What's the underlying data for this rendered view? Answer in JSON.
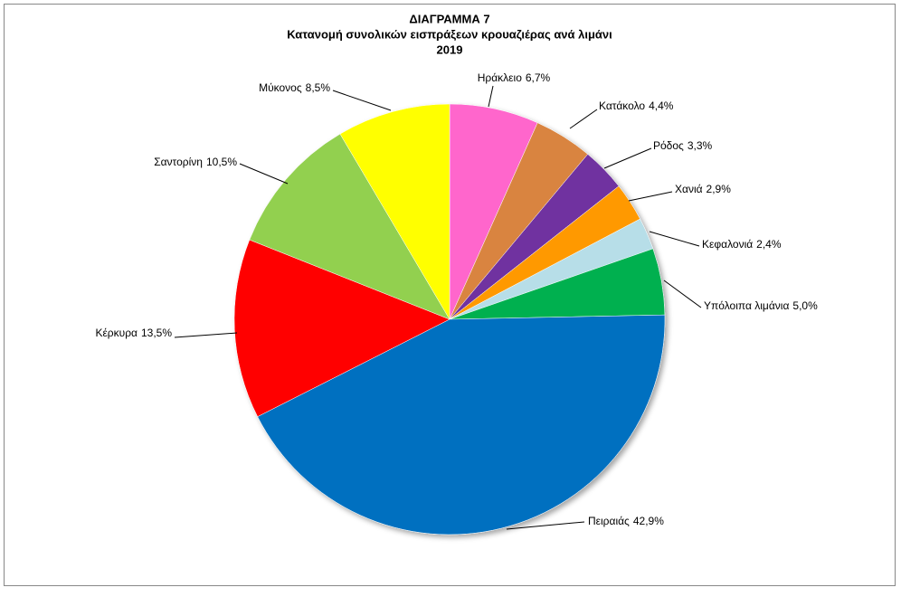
{
  "chart_data": {
    "type": "pie",
    "title": [
      "ΔΙΑΓΡΑΜΜΑ 7",
      "Κατανομή συνολικών εισπράξεων κρουαζιέρας ανά  λιμάνι",
      "2019"
    ],
    "categories": [
      "Ηράκλειο",
      "Κατάκολο",
      "Ρόδος",
      "Χανιά",
      "Κεφαλονιά",
      "Υπόλοιπα λιμάνια",
      "Πειραιάς",
      "Κέρκυρα",
      "Σαντορίνη",
      "Μύκονος"
    ],
    "values": [
      6.7,
      4.4,
      3.3,
      2.9,
      2.4,
      5.0,
      42.9,
      13.5,
      10.5,
      8.5
    ],
    "value_labels": [
      "6,7%",
      "4,4%",
      "3,3%",
      "2,9%",
      "2,4%",
      "5,0%",
      "42,9%",
      "13,5%",
      "10,5%",
      "8,5%"
    ],
    "colors": [
      "#ff66cc",
      "#d9843f",
      "#7030a0",
      "#ff9900",
      "#b7dee8",
      "#00b050",
      "#0070c0",
      "#ff0000",
      "#92d050",
      "#ffff00"
    ]
  }
}
